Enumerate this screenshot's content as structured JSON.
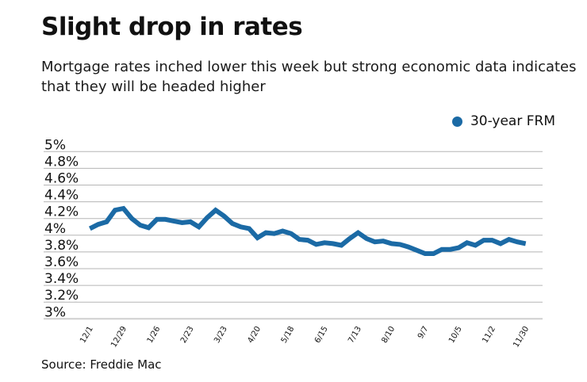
{
  "chart_data": {
    "type": "line",
    "title": "Slight drop in rates",
    "subtitle": "Mortgage rates inched lower this week but strong economic data indicates that they will be headed higher",
    "source": "Source: Freddie Mac",
    "legend_position": "top-right",
    "grid": true,
    "ylim": [
      3,
      5
    ],
    "yticks": [
      "5%",
      "4.8%",
      "4.6%",
      "4.4%",
      "4.2%",
      "4%",
      "3.8%",
      "3.6%",
      "3.4%",
      "3.2%",
      "3%"
    ],
    "ytick_values": [
      5,
      4.8,
      4.6,
      4.4,
      4.2,
      4,
      3.8,
      3.6,
      3.4,
      3.2,
      3
    ],
    "xtick_labels": [
      "12/1",
      "12/29",
      "1/26",
      "2/23",
      "3/23",
      "4/20",
      "5/18",
      "6/15",
      "7/13",
      "8/10",
      "9/7",
      "10/5",
      "11/2",
      "11/30"
    ],
    "xtick_every": 4,
    "series": [
      {
        "name": "30-year FRM",
        "color": "#1b6aa5",
        "values": [
          4.08,
          4.13,
          4.16,
          4.3,
          4.32,
          4.2,
          4.12,
          4.09,
          4.19,
          4.19,
          4.17,
          4.15,
          4.16,
          4.1,
          4.21,
          4.3,
          4.23,
          4.14,
          4.1,
          4.08,
          3.97,
          4.03,
          4.02,
          4.05,
          4.02,
          3.95,
          3.94,
          3.89,
          3.91,
          3.9,
          3.88,
          3.96,
          4.03,
          3.96,
          3.92,
          3.93,
          3.9,
          3.89,
          3.86,
          3.82,
          3.78,
          3.78,
          3.83,
          3.83,
          3.85,
          3.91,
          3.88,
          3.94,
          3.94,
          3.9,
          3.95,
          3.92,
          3.9
        ]
      }
    ]
  }
}
